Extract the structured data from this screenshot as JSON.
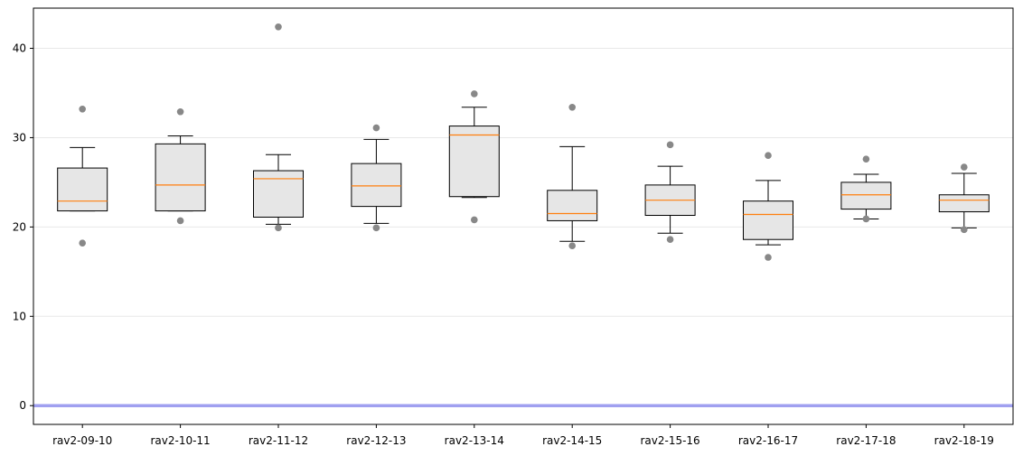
{
  "chart_data": {
    "type": "box",
    "title": "",
    "xlabel": "",
    "ylabel": "",
    "ylim": [
      -2.1,
      44.5
    ],
    "yticks": [
      0,
      10,
      20,
      30,
      40
    ],
    "ytick_labels": [
      "0",
      "10",
      "20",
      "30",
      "40"
    ],
    "grid": "horizontal",
    "reference_line": {
      "y": 0,
      "color": "#a0a0f0"
    },
    "colors": {
      "box_fill": "#e6e6e6",
      "box_edge": "#000000",
      "median": "#ff7f0e",
      "outlier": "#888888"
    },
    "categories": [
      "rav2-09-10",
      "rav2-10-11",
      "rav2-11-12",
      "rav2-12-13",
      "rav2-13-14",
      "rav2-14-15",
      "rav2-15-16",
      "rav2-16-17",
      "rav2-17-18",
      "rav2-18-19"
    ],
    "boxes": [
      {
        "whisker_low": 21.8,
        "q1": 21.8,
        "median": 22.9,
        "q3": 26.6,
        "whisker_high": 28.9,
        "outliers": [
          33.2,
          18.2
        ]
      },
      {
        "whisker_low": 21.8,
        "q1": 21.8,
        "median": 24.7,
        "q3": 29.3,
        "whisker_high": 30.2,
        "outliers": [
          32.9,
          20.7
        ]
      },
      {
        "whisker_low": 20.3,
        "q1": 21.1,
        "median": 25.4,
        "q3": 26.3,
        "whisker_high": 28.1,
        "outliers": [
          42.4,
          19.9
        ]
      },
      {
        "whisker_low": 20.4,
        "q1": 22.3,
        "median": 24.6,
        "q3": 27.1,
        "whisker_high": 29.8,
        "outliers": [
          31.1,
          19.9
        ]
      },
      {
        "whisker_low": 23.3,
        "q1": 23.4,
        "median": 30.3,
        "q3": 31.3,
        "whisker_high": 33.4,
        "outliers": [
          34.9,
          20.8
        ]
      },
      {
        "whisker_low": 18.4,
        "q1": 20.7,
        "median": 21.5,
        "q3": 24.1,
        "whisker_high": 29.0,
        "outliers": [
          33.4,
          17.9
        ]
      },
      {
        "whisker_low": 19.3,
        "q1": 21.3,
        "median": 23.0,
        "q3": 24.7,
        "whisker_high": 26.8,
        "outliers": [
          29.2,
          18.6
        ]
      },
      {
        "whisker_low": 18.0,
        "q1": 18.6,
        "median": 21.4,
        "q3": 22.9,
        "whisker_high": 25.2,
        "outliers": [
          28.0,
          16.6
        ]
      },
      {
        "whisker_low": 20.9,
        "q1": 22.0,
        "median": 23.6,
        "q3": 25.0,
        "whisker_high": 25.9,
        "outliers": [
          27.6,
          20.9
        ]
      },
      {
        "whisker_low": 19.9,
        "q1": 21.7,
        "median": 23.0,
        "q3": 23.6,
        "whisker_high": 26.0,
        "outliers": [
          26.7,
          19.7
        ]
      }
    ]
  }
}
